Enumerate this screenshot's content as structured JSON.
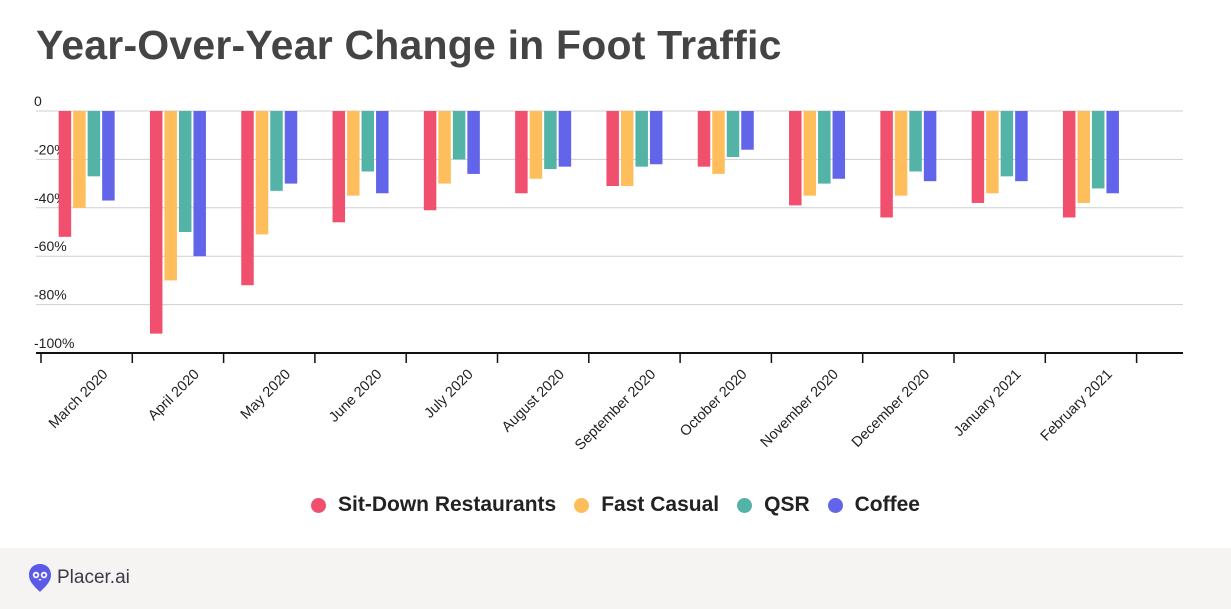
{
  "header": {
    "title": "Year-Over-Year Change in Foot Traffic"
  },
  "footer": {
    "brand": "Placer.ai",
    "logo_icon": "placer-owl-icon"
  },
  "colors": {
    "sit_down": "#f0506e",
    "fast_casual": "#ffbe5c",
    "qsr": "#52b3a6",
    "coffee": "#6264ea",
    "brand": "#5b5be8"
  },
  "chart_data": {
    "type": "bar",
    "title": "Year-Over-Year Change in Foot Traffic",
    "xlabel": "",
    "ylabel": "",
    "ylim": [
      -100,
      0
    ],
    "yticks": [
      0,
      -20,
      -40,
      -60,
      -80,
      -100
    ],
    "ytick_labels": [
      "0",
      "-20%",
      "-40%",
      "-60%",
      "-80%",
      "-100%"
    ],
    "grid": true,
    "legend_position": "bottom",
    "categories": [
      "March 2020",
      "April 2020",
      "May 2020",
      "June 2020",
      "July 2020",
      "August 2020",
      "September 2020",
      "October 2020",
      "November 2020",
      "December 2020",
      "January 2021",
      "February 2021"
    ],
    "series": [
      {
        "name": "Sit-Down Restaurants",
        "color": "#f0506e",
        "values": [
          -52,
          -92,
          -72,
          -46,
          -41,
          -34,
          -31,
          -23,
          -39,
          -44,
          -38,
          -44
        ]
      },
      {
        "name": "Fast Casual",
        "color": "#ffbe5c",
        "values": [
          -40,
          -70,
          -51,
          -35,
          -30,
          -28,
          -31,
          -26,
          -35,
          -35,
          -34,
          -38
        ]
      },
      {
        "name": "QSR",
        "color": "#52b3a6",
        "values": [
          -27,
          -50,
          -33,
          -25,
          -20,
          -24,
          -23,
          -19,
          -30,
          -25,
          -27,
          -32
        ]
      },
      {
        "name": "Coffee",
        "color": "#6264ea",
        "values": [
          -37,
          -60,
          -30,
          -34,
          -26,
          -23,
          -22,
          -16,
          -28,
          -29,
          -29,
          -34
        ]
      }
    ]
  }
}
